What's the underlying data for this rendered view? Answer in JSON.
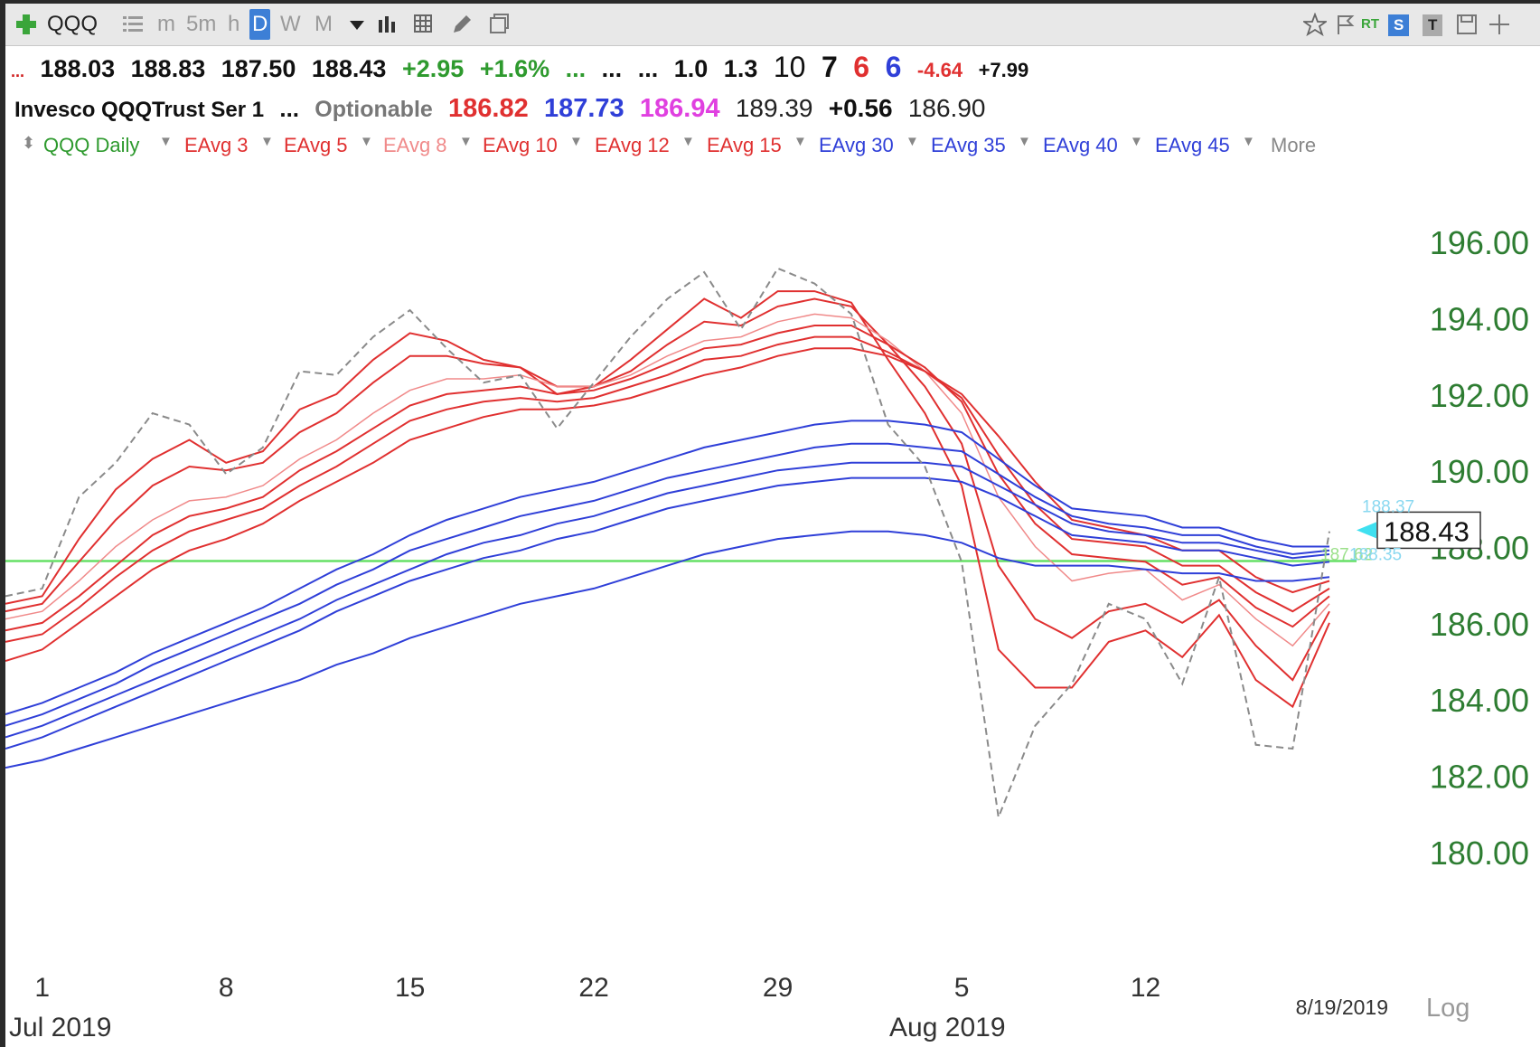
{
  "toolbar": {
    "symbol": "QQQ",
    "timeframes": [
      "m",
      "5m",
      "h",
      "D",
      "W",
      "M"
    ],
    "active_timeframe": "D",
    "badges": {
      "rt": "RT",
      "s": "S",
      "t": "T"
    }
  },
  "quote_row": {
    "prefix": "...",
    "open": "188.03",
    "high": "188.83",
    "low": "187.50",
    "close": "188.43",
    "change": "+2.95",
    "change_pct": "+1.6%",
    "dots1": "...",
    "dots2": "...",
    "dots3": "...",
    "v1": "1.0",
    "v2": "1.3",
    "n1": "10",
    "n2": "7",
    "n3": "6",
    "n4": "6",
    "neg": "-4.64",
    "pos": "+7.99"
  },
  "info_row": {
    "name": "Invesco QQQTrust Ser 1",
    "dots": "...",
    "optionable": "Optionable",
    "val_red": "186.82",
    "val_blue": "187.73",
    "val_magenta": "186.94",
    "val_plain": "189.39",
    "val_change": "+0.56",
    "val_last": "186.90"
  },
  "legend": {
    "main": "QQQ Daily",
    "items": [
      {
        "label": "EAvg 3",
        "color": "#e03030"
      },
      {
        "label": "EAvg 5",
        "color": "#e03030"
      },
      {
        "label": "EAvg 8",
        "color": "#f08a8a"
      },
      {
        "label": "EAvg 10",
        "color": "#e03030"
      },
      {
        "label": "EAvg 12",
        "color": "#e03030"
      },
      {
        "label": "EAvg 15",
        "color": "#e03030"
      },
      {
        "label": "EAvg 30",
        "color": "#2f3fd8"
      },
      {
        "label": "EAvg 35",
        "color": "#2f3fd8"
      },
      {
        "label": "EAvg 40",
        "color": "#2f3fd8"
      },
      {
        "label": "EAvg 45",
        "color": "#2f3fd8"
      }
    ],
    "more": "More"
  },
  "chart_data": {
    "type": "line",
    "ylim": [
      179,
      197.5
    ],
    "y_ticks": [
      "196.00",
      "194.00",
      "192.00",
      "190.00",
      "188.00",
      "186.00",
      "184.00",
      "182.00",
      "180.00"
    ],
    "x_ticks": [
      "1",
      "8",
      "15",
      "22",
      "29",
      "5",
      "12"
    ],
    "x_tick_index": [
      1,
      6,
      11,
      16,
      21,
      26,
      31
    ],
    "month_labels": {
      "jul": "Jul 2019",
      "aug": "Aug 2019"
    },
    "date_label": "8/19/2019",
    "log_label": "Log",
    "last_price": "188.43",
    "last_price_value": 188.43,
    "horizontal_line": 187.62,
    "small_labels": [
      "188.37",
      "187.62",
      "188.35"
    ],
    "price": [
      186.7,
      186.9,
      189.3,
      190.2,
      191.5,
      191.2,
      189.9,
      190.6,
      192.6,
      192.5,
      193.5,
      194.2,
      193.2,
      192.3,
      192.5,
      191.1,
      192.3,
      193.5,
      194.5,
      195.2,
      193.7,
      195.3,
      194.9,
      194.1,
      191.2,
      190.1,
      187.6,
      180.9,
      183.3,
      184.4,
      186.5,
      186.1,
      184.4,
      187.2,
      182.8,
      182.7,
      188.4
    ],
    "series": [
      {
        "name": "EAvg 3",
        "color": "#e03030",
        "width": 2,
        "values": [
          186.5,
          186.7,
          188.2,
          189.5,
          190.3,
          190.8,
          190.2,
          190.5,
          191.6,
          192.0,
          192.9,
          193.6,
          193.4,
          192.9,
          192.7,
          192.0,
          192.2,
          192.9,
          193.7,
          194.5,
          194.0,
          194.7,
          194.7,
          194.4,
          192.9,
          191.5,
          189.6,
          185.3,
          184.3,
          184.3,
          185.5,
          185.8,
          185.1,
          186.2,
          184.5,
          183.8,
          186.0
        ]
      },
      {
        "name": "EAvg 5",
        "color": "#e03030",
        "width": 2,
        "values": [
          186.3,
          186.5,
          187.6,
          188.7,
          189.6,
          190.1,
          190.0,
          190.2,
          191.0,
          191.5,
          192.3,
          193.0,
          193.0,
          192.8,
          192.7,
          192.2,
          192.2,
          192.6,
          193.3,
          193.9,
          193.8,
          194.3,
          194.5,
          194.3,
          193.3,
          192.2,
          190.7,
          187.5,
          186.1,
          185.6,
          186.3,
          186.5,
          186.0,
          186.6,
          185.4,
          184.5,
          186.3
        ]
      },
      {
        "name": "EAvg 8",
        "color": "#f08a8a",
        "width": 1.5,
        "values": [
          186.1,
          186.3,
          187.1,
          188.0,
          188.7,
          189.2,
          189.3,
          189.6,
          190.3,
          190.8,
          191.5,
          192.1,
          192.4,
          192.4,
          192.5,
          192.2,
          192.2,
          192.5,
          193.0,
          193.4,
          193.5,
          193.9,
          194.1,
          194.0,
          193.4,
          192.6,
          191.5,
          189.3,
          188.0,
          187.1,
          187.3,
          187.4,
          186.6,
          187.0,
          186.1,
          185.4,
          186.5
        ]
      },
      {
        "name": "EAvg 10",
        "color": "#e03030",
        "width": 2,
        "values": [
          185.8,
          186.0,
          186.7,
          187.5,
          188.3,
          188.8,
          189.0,
          189.3,
          190.0,
          190.5,
          191.1,
          191.7,
          192.0,
          192.1,
          192.2,
          192.0,
          192.1,
          192.4,
          192.8,
          193.2,
          193.3,
          193.6,
          193.8,
          193.8,
          193.3,
          192.7,
          191.8,
          189.9,
          188.6,
          187.8,
          187.7,
          187.6,
          187.0,
          187.2,
          186.4,
          185.9,
          186.7
        ]
      },
      {
        "name": "EAvg 12",
        "color": "#e03030",
        "width": 2,
        "values": [
          185.5,
          185.7,
          186.4,
          187.2,
          187.9,
          188.4,
          188.7,
          189.0,
          189.6,
          190.1,
          190.7,
          191.3,
          191.6,
          191.8,
          191.9,
          191.8,
          191.9,
          192.2,
          192.5,
          192.9,
          193.0,
          193.3,
          193.5,
          193.5,
          193.1,
          192.6,
          191.9,
          190.4,
          189.1,
          188.2,
          188.1,
          188.0,
          187.5,
          187.5,
          186.8,
          186.3,
          186.9
        ]
      },
      {
        "name": "EAvg 15",
        "color": "#e03030",
        "width": 2,
        "values": [
          185.0,
          185.3,
          186.0,
          186.7,
          187.4,
          187.9,
          188.2,
          188.6,
          189.2,
          189.7,
          190.2,
          190.8,
          191.1,
          191.4,
          191.6,
          191.6,
          191.7,
          191.9,
          192.2,
          192.5,
          192.7,
          193.0,
          193.2,
          193.2,
          193.0,
          192.6,
          192.0,
          190.9,
          189.7,
          188.7,
          188.5,
          188.3,
          187.9,
          187.9,
          187.2,
          186.8,
          187.1
        ]
      },
      {
        "name": "EAvg 30",
        "color": "#2f3fd8",
        "width": 2,
        "values": [
          183.6,
          183.9,
          184.3,
          184.7,
          185.2,
          185.6,
          186.0,
          186.4,
          186.9,
          187.4,
          187.8,
          188.3,
          188.7,
          189.0,
          189.3,
          189.5,
          189.7,
          190.0,
          190.3,
          190.6,
          190.8,
          191.0,
          191.2,
          191.3,
          191.3,
          191.2,
          191.0,
          190.3,
          189.6,
          189.0,
          188.9,
          188.8,
          188.5,
          188.5,
          188.2,
          188.0,
          188.0
        ]
      },
      {
        "name": "EAvg 35",
        "color": "#2f3fd8",
        "width": 2,
        "values": [
          183.3,
          183.6,
          184.0,
          184.4,
          184.9,
          185.3,
          185.7,
          186.1,
          186.5,
          187.0,
          187.4,
          187.9,
          188.2,
          188.5,
          188.8,
          189.0,
          189.2,
          189.5,
          189.8,
          190.0,
          190.2,
          190.4,
          190.6,
          190.7,
          190.7,
          190.6,
          190.5,
          189.9,
          189.3,
          188.8,
          188.6,
          188.5,
          188.3,
          188.3,
          188.0,
          187.8,
          187.9
        ]
      },
      {
        "name": "EAvg 40",
        "color": "#2f3fd8",
        "width": 2,
        "values": [
          183.0,
          183.3,
          183.7,
          184.1,
          184.5,
          184.9,
          185.3,
          185.7,
          186.1,
          186.6,
          187.0,
          187.4,
          187.8,
          188.1,
          188.3,
          188.6,
          188.8,
          189.1,
          189.4,
          189.6,
          189.8,
          190.0,
          190.1,
          190.2,
          190.2,
          190.2,
          190.1,
          189.6,
          189.1,
          188.6,
          188.4,
          188.3,
          188.1,
          188.1,
          187.9,
          187.7,
          187.8
        ]
      },
      {
        "name": "EAvg 45",
        "color": "#2f3fd8",
        "width": 2,
        "values": [
          182.7,
          183.0,
          183.4,
          183.8,
          184.2,
          184.6,
          185.0,
          185.4,
          185.8,
          186.3,
          186.7,
          187.1,
          187.4,
          187.7,
          187.9,
          188.2,
          188.4,
          188.7,
          189.0,
          189.2,
          189.4,
          189.6,
          189.7,
          189.8,
          189.8,
          189.8,
          189.7,
          189.3,
          188.8,
          188.3,
          188.2,
          188.1,
          187.9,
          187.9,
          187.7,
          187.5,
          187.6
        ]
      },
      {
        "name": "",
        "color": "#2f3fd8",
        "width": 2,
        "values": [
          182.2,
          182.4,
          182.7,
          183.0,
          183.3,
          183.6,
          183.9,
          184.2,
          184.5,
          184.9,
          185.2,
          185.6,
          185.9,
          186.2,
          186.5,
          186.7,
          186.9,
          187.2,
          187.5,
          187.8,
          188.0,
          188.2,
          188.3,
          188.4,
          188.4,
          188.3,
          188.1,
          187.7,
          187.5,
          187.5,
          187.5,
          187.4,
          187.3,
          187.3,
          187.1,
          187.1,
          187.2
        ]
      }
    ]
  }
}
